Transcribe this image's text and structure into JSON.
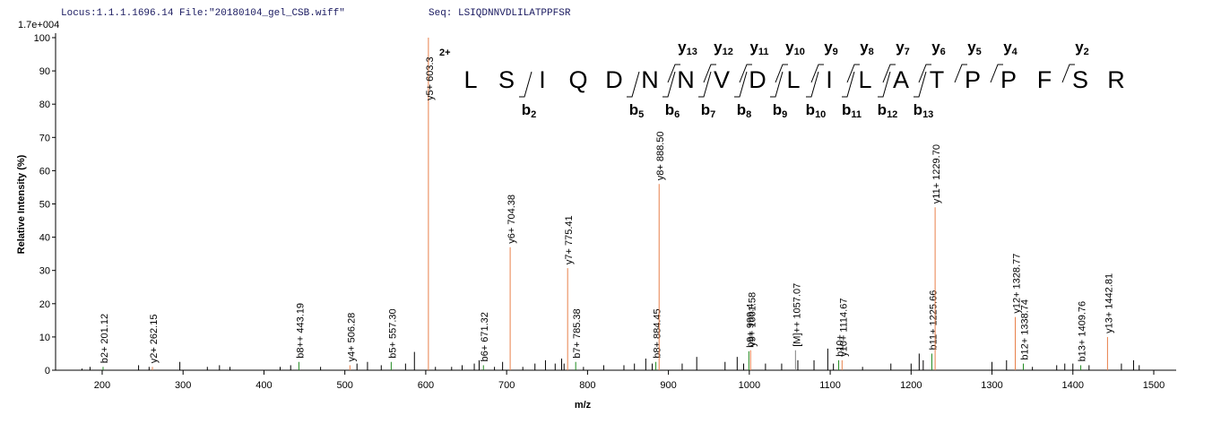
{
  "chart_data": {
    "type": "spectrum",
    "locus": "Locus:1.1.1.1696.14 File:\"20180104_gel_CSB.wiff\"",
    "seq": "Seq: LSIQDNNVDLILATPPFSR",
    "scale_label": "1.7e+004",
    "ylabel": "Relative Intensity (%)",
    "xlabel": "m/z",
    "xlim": [
      142.4,
      1527.7
    ],
    "xticks": [
      200,
      300,
      400,
      500,
      600,
      700,
      800,
      900,
      1000,
      1100,
      1200,
      1300,
      1400,
      1500
    ],
    "ylim": [
      0,
      100
    ],
    "yticks": [
      0,
      10,
      20,
      30,
      40,
      50,
      60,
      70,
      80,
      90,
      100
    ],
    "peaks": {
      "color": "#000000",
      "x": [
        175,
        185,
        245,
        258,
        296,
        330,
        345,
        358,
        420,
        433,
        470,
        515,
        528,
        545,
        575,
        586,
        612,
        632,
        645,
        660,
        666,
        685,
        695,
        720,
        735,
        748,
        760,
        768,
        771,
        795,
        820,
        845,
        858,
        872,
        880,
        917,
        935,
        970,
        985,
        993,
        1020,
        1040,
        1060,
        1080,
        1097,
        1104,
        1140,
        1175,
        1200,
        1210,
        1215,
        1300,
        1318,
        1350,
        1380,
        1390,
        1400,
        1420,
        1460,
        1475,
        1482
      ],
      "values": [
        0.5,
        1,
        1.5,
        1,
        2.5,
        1,
        1.5,
        1,
        1,
        1.5,
        1,
        2,
        2.5,
        1.5,
        2,
        5.5,
        1,
        1,
        1.5,
        2,
        3,
        1,
        2.5,
        1,
        2,
        3,
        2,
        3.5,
        2,
        1,
        1.5,
        1.5,
        2,
        3.5,
        2,
        2,
        4,
        2.5,
        4,
        2,
        2,
        2,
        3,
        3,
        6.5,
        2,
        1,
        2,
        2,
        5,
        3,
        2.5,
        3,
        1,
        1.5,
        2,
        2,
        1.5,
        2,
        3,
        1.5
      ]
    },
    "annotated": [
      {
        "label": "b2+ 201.12",
        "x": 201.12,
        "value": 1,
        "color": "#208a20"
      },
      {
        "label": "y2+ 262.15",
        "x": 262.15,
        "value": 1,
        "color": "#e8804a"
      },
      {
        "label": "b8++ 443.19",
        "x": 443.19,
        "value": 2.5,
        "color": "#208a20"
      },
      {
        "label": "y4+ 506.28",
        "x": 506.28,
        "value": 1.5,
        "color": "#e8804a"
      },
      {
        "label": "b5+ 557.30",
        "x": 557.3,
        "value": 2.5,
        "color": "#208a20"
      },
      {
        "label": "y5+ 603.3",
        "x": 603.3,
        "value": 100,
        "color": "#e8804a"
      },
      {
        "label": "b6+ 671.32",
        "x": 671.32,
        "value": 1.5,
        "color": "#208a20"
      },
      {
        "label": "y6+ 704.38",
        "x": 704.38,
        "value": 37,
        "color": "#e8804a"
      },
      {
        "label": "y7+ 775.41",
        "x": 775.41,
        "value": 30.7,
        "color": "#e8804a"
      },
      {
        "label": "b7+ 785.38",
        "x": 785.38,
        "value": 2.5,
        "color": "#208a20"
      },
      {
        "label": "b8+ 884.45",
        "x": 884.45,
        "value": 2.5,
        "color": "#208a20"
      },
      {
        "label": "y8+ 888.50",
        "x": 888.5,
        "value": 56,
        "color": "#e8804a"
      },
      {
        "label": "b9+ 999.4",
        "x": 999.4,
        "value": 5.7,
        "color": "#208a20"
      },
      {
        "label": "y9+ 1001.58",
        "x": 1001.58,
        "value": 6,
        "color": "#e8804a"
      },
      {
        "label": "[M]++ 1057.07",
        "x": 1057.07,
        "value": 6,
        "color": "#808080"
      },
      {
        "label": "b10+",
        "x": 1110.5,
        "value": 3,
        "color": "#208a20"
      },
      {
        "label": "y10+ 1114.67",
        "x": 1114.67,
        "value": 3,
        "color": "#e8804a"
      },
      {
        "label": "b11+ 1225.66",
        "x": 1225.66,
        "value": 5,
        "color": "#208a20"
      },
      {
        "label": "y11+ 1229.70",
        "x": 1229.7,
        "value": 49,
        "color": "#e8804a"
      },
      {
        "label": "y12+ 1328.77",
        "x": 1328.77,
        "value": 16,
        "color": "#e8804a"
      },
      {
        "label": "b12+ 1338.74",
        "x": 1338.74,
        "value": 2,
        "color": "#208a20"
      },
      {
        "label": "b13+ 1409.76",
        "x": 1409.76,
        "value": 1.5,
        "color": "#208a20"
      },
      {
        "label": "y13+ 1442.81",
        "x": 1442.81,
        "value": 10,
        "color": "#e8804a"
      }
    ],
    "sequence": {
      "charge": "2+",
      "charge_color": "#1a1acc",
      "y_color": "#e8804a",
      "b_color": "#208a20",
      "letters": [
        "L",
        "S",
        "I",
        "Q",
        "D",
        "N",
        "N",
        "V",
        "D",
        "L",
        "I",
        "L",
        "A",
        "T",
        "P",
        "P",
        "F",
        "S",
        "R"
      ],
      "y_ions": [
        [
          "y",
          "13"
        ],
        [
          "y",
          "12"
        ],
        [
          "y",
          "11"
        ],
        [
          "y",
          "10"
        ],
        [
          "y",
          "9"
        ],
        [
          "y",
          "8"
        ],
        [
          "y",
          "7"
        ],
        [
          "y",
          "6"
        ],
        [
          "y",
          "5"
        ],
        [
          "y",
          "4"
        ],
        [
          "y",
          "2"
        ]
      ],
      "b_ions": [
        [
          "b",
          "2"
        ],
        [
          "b",
          "5"
        ],
        [
          "b",
          "6"
        ],
        [
          "b",
          "7"
        ],
        [
          "b",
          "8"
        ],
        [
          "b",
          "9"
        ],
        [
          "b",
          "10"
        ],
        [
          "b",
          "11"
        ],
        [
          "b",
          "12"
        ],
        [
          "b",
          "13"
        ]
      ]
    }
  }
}
